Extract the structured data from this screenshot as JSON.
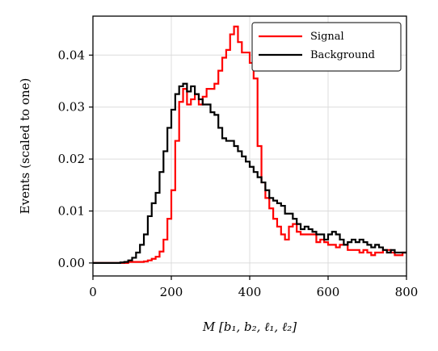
{
  "chart_data": {
    "type": "line",
    "step": true,
    "xlabel": "M [b₁, b₂, ℓ₁, ℓ₂]",
    "ylabel": "Events (scaled to one)",
    "xlim": [
      0,
      800
    ],
    "ylim": [
      -0.0025,
      0.0475
    ],
    "xticks": [
      0,
      200,
      400,
      600,
      800
    ],
    "yticks": [
      0.0,
      0.01,
      0.02,
      0.03,
      0.04
    ],
    "xtick_labels": [
      "0",
      "200",
      "400",
      "600",
      "800"
    ],
    "ytick_labels": [
      "0.00",
      "0.01",
      "0.02",
      "0.03",
      "0.04"
    ],
    "grid": true,
    "legend": "top-right",
    "bin_width": 10,
    "x": [
      0,
      10,
      20,
      30,
      40,
      50,
      60,
      70,
      80,
      90,
      100,
      110,
      120,
      130,
      140,
      150,
      160,
      170,
      180,
      190,
      200,
      210,
      220,
      230,
      240,
      250,
      260,
      270,
      280,
      290,
      300,
      310,
      320,
      330,
      340,
      350,
      360,
      370,
      380,
      390,
      400,
      410,
      420,
      430,
      440,
      450,
      460,
      470,
      480,
      490,
      500,
      510,
      520,
      530,
      540,
      550,
      560,
      570,
      580,
      590,
      600,
      610,
      620,
      630,
      640,
      650,
      660,
      670,
      680,
      690,
      700,
      710,
      720,
      730,
      740,
      750,
      760,
      770,
      780,
      790
    ],
    "series": [
      {
        "name": "Signal",
        "color": "#ff0000",
        "values": [
          0,
          0,
          0,
          0,
          0,
          0,
          0,
          0,
          0,
          0.0002,
          0.0002,
          0.0002,
          0.0002,
          0.0003,
          0.0005,
          0.0008,
          0.0012,
          0.0022,
          0.0045,
          0.0085,
          0.014,
          0.0235,
          0.031,
          0.0335,
          0.0305,
          0.0315,
          0.0325,
          0.0305,
          0.032,
          0.0335,
          0.0335,
          0.0345,
          0.037,
          0.0395,
          0.041,
          0.044,
          0.0455,
          0.0425,
          0.0405,
          0.0405,
          0.0385,
          0.0355,
          0.0225,
          0.0155,
          0.0125,
          0.0105,
          0.0085,
          0.007,
          0.0055,
          0.0045,
          0.007,
          0.0075,
          0.006,
          0.0055,
          0.0055,
          0.0055,
          0.0055,
          0.004,
          0.0045,
          0.004,
          0.0035,
          0.0035,
          0.003,
          0.0035,
          0.0035,
          0.0025,
          0.0025,
          0.0025,
          0.002,
          0.0025,
          0.002,
          0.0015,
          0.002,
          0.002,
          0.0025,
          0.0025,
          0.002,
          0.0015,
          0.0015,
          0.002
        ]
      },
      {
        "name": "Background",
        "color": "#000000",
        "values": [
          0,
          0,
          0,
          0,
          0,
          0,
          0,
          0.0001,
          0.0002,
          0.0005,
          0.001,
          0.002,
          0.0035,
          0.0055,
          0.009,
          0.0115,
          0.0135,
          0.0175,
          0.0215,
          0.026,
          0.0295,
          0.0325,
          0.034,
          0.0345,
          0.033,
          0.034,
          0.0325,
          0.0315,
          0.0305,
          0.0305,
          0.029,
          0.0285,
          0.026,
          0.024,
          0.0235,
          0.0235,
          0.0225,
          0.0215,
          0.0205,
          0.0195,
          0.0185,
          0.0175,
          0.0165,
          0.0155,
          0.014,
          0.0125,
          0.012,
          0.0115,
          0.011,
          0.0095,
          0.0095,
          0.0085,
          0.0075,
          0.0065,
          0.007,
          0.0065,
          0.006,
          0.0055,
          0.0055,
          0.0045,
          0.0055,
          0.006,
          0.0055,
          0.0045,
          0.0035,
          0.004,
          0.0045,
          0.004,
          0.0045,
          0.004,
          0.0035,
          0.003,
          0.0035,
          0.003,
          0.0025,
          0.002,
          0.0025,
          0.002,
          0.002,
          0.002
        ]
      }
    ]
  }
}
